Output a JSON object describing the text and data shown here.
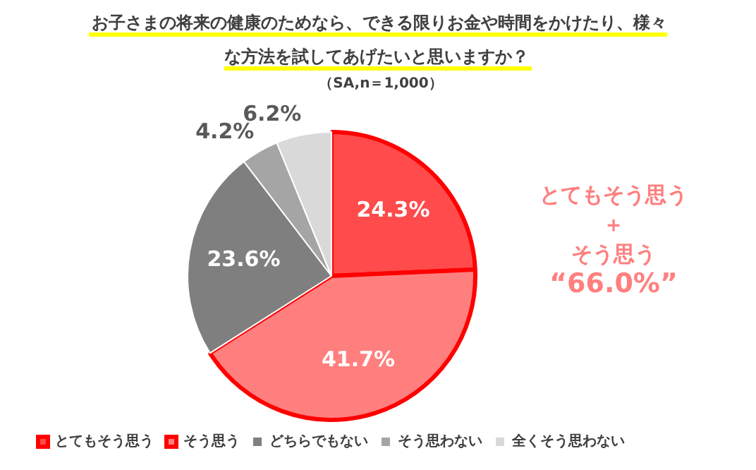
{
  "chart_data": {
    "type": "pie",
    "title": "お子さまの将来の健康のためなら、できる限りお金や時間をかけたり、様々な方法を試してあげたいと思いますか？",
    "categories": [
      "とてもそう思う",
      "そう思う",
      "どちらでもない",
      "そう思わない",
      "全くそう思わない"
    ],
    "values": [
      24.3,
      41.7,
      23.6,
      4.2,
      6.2
    ],
    "colors": [
      "#ff4b4b",
      "#ff7f7f",
      "#7f7f7f",
      "#a5a5a5",
      "#d9d9d9"
    ],
    "value_labels": [
      "24.3%",
      "41.7%",
      "23.6%",
      "4.2%",
      "6.2%"
    ],
    "legend": "bottom",
    "annotations": [
      "（SA,n＝1,000）",
      "とてもそう思う",
      "＋",
      "そう思う",
      "“66.0%”"
    ]
  }
}
